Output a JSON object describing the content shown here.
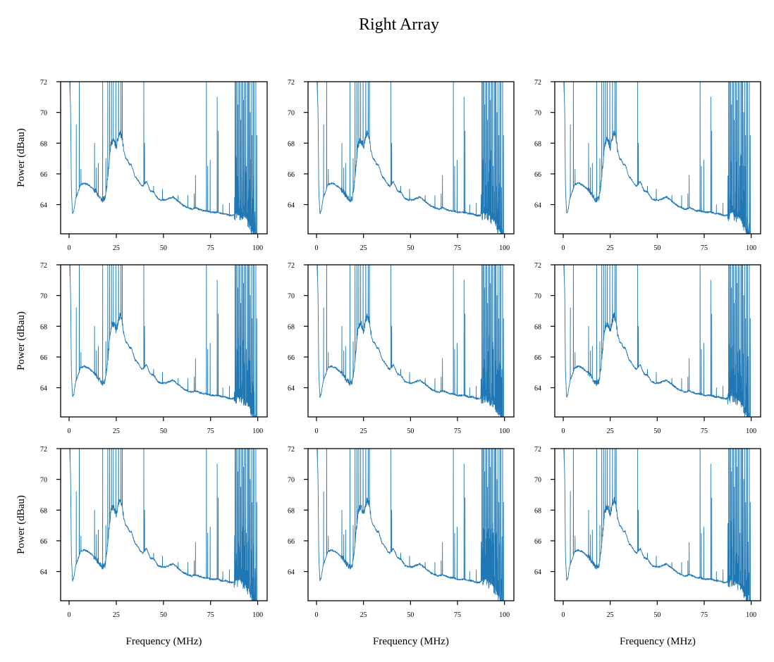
{
  "chart_data": {
    "type": "line",
    "title": "Right Array",
    "layout": {
      "rows": 3,
      "cols": 3
    },
    "xlabel": "Frequency (MHz)",
    "ylabel": "Power (dBau)",
    "xlim": [
      -4.5,
      105
    ],
    "ylim": [
      62.1,
      72
    ],
    "xticks": [
      0,
      25,
      50,
      75,
      100
    ],
    "xtick_labels": [
      "0",
      "25",
      "50",
      "75",
      "100"
    ],
    "yticks": [
      64,
      66,
      68,
      70,
      72
    ],
    "ytick_labels": [
      "64",
      "66",
      "68",
      "70",
      "72"
    ],
    "grid": false,
    "legend": "none",
    "line_color": "#1f77b4",
    "shared_spectrum_shape": {
      "note": "Approximate trace read from axes; all 9 subplots show near-identical spectra",
      "baseline_points": [
        [
          0.3,
          72
        ],
        [
          0.8,
          70.2
        ],
        [
          1.2,
          65.0
        ],
        [
          1.8,
          63.4
        ],
        [
          2.5,
          63.6
        ],
        [
          3.5,
          64.4
        ],
        [
          5,
          64.9
        ],
        [
          6,
          65.3
        ],
        [
          8,
          65.4
        ],
        [
          10,
          65.3
        ],
        [
          12,
          65.1
        ],
        [
          14,
          64.9
        ],
        [
          16,
          64.5
        ],
        [
          17.5,
          64.3
        ],
        [
          19,
          64.4
        ],
        [
          20,
          65.2
        ],
        [
          21,
          66.5
        ],
        [
          22,
          67.8
        ],
        [
          23,
          68.2
        ],
        [
          24,
          68.1
        ],
        [
          25,
          67.7
        ],
        [
          26,
          68.3
        ],
        [
          27,
          68.7
        ],
        [
          28,
          68.4
        ],
        [
          29,
          67.5
        ],
        [
          30,
          67.0
        ],
        [
          31,
          66.9
        ],
        [
          32,
          66.6
        ],
        [
          33,
          66.6
        ],
        [
          34,
          66.2
        ],
        [
          35,
          65.8
        ],
        [
          36,
          65.7
        ],
        [
          37,
          65.5
        ],
        [
          38,
          65.3
        ],
        [
          39,
          65.2
        ],
        [
          41,
          65.5
        ],
        [
          42,
          65.2
        ],
        [
          43,
          64.9
        ],
        [
          45,
          64.8
        ],
        [
          47,
          64.4
        ],
        [
          49,
          64.3
        ],
        [
          51,
          64.3
        ],
        [
          53,
          64.4
        ],
        [
          55,
          64.5
        ],
        [
          57,
          64.3
        ],
        [
          59,
          64.1
        ],
        [
          61,
          63.9
        ],
        [
          63,
          63.8
        ],
        [
          65,
          63.7
        ],
        [
          67,
          63.8
        ],
        [
          69,
          63.7
        ],
        [
          71,
          63.6
        ],
        [
          73,
          63.6
        ],
        [
          75,
          63.5
        ],
        [
          77,
          63.5
        ],
        [
          79,
          63.5
        ],
        [
          81,
          63.4
        ],
        [
          83,
          63.4
        ],
        [
          85,
          63.3
        ],
        [
          87,
          63.3
        ],
        [
          88,
          63.4
        ],
        [
          90,
          63.5
        ],
        [
          92,
          63.3
        ],
        [
          94,
          63.1
        ],
        [
          95,
          62.9
        ],
        [
          96,
          62.7
        ],
        [
          97,
          62.4
        ],
        [
          98,
          62.1
        ],
        [
          98.5,
          62.1
        ]
      ],
      "spikes": [
        [
          0.5,
          72
        ],
        [
          3.8,
          69.2
        ],
        [
          5.4,
          72
        ],
        [
          6.3,
          66.3
        ],
        [
          13.5,
          68.0
        ],
        [
          14.5,
          66.4
        ],
        [
          15.5,
          66.7
        ],
        [
          17.8,
          72
        ],
        [
          19.5,
          67.0
        ],
        [
          20.5,
          72
        ],
        [
          21.5,
          72
        ],
        [
          22.5,
          72
        ],
        [
          23.5,
          72
        ],
        [
          24.8,
          72
        ],
        [
          26.2,
          72
        ],
        [
          27.5,
          72
        ],
        [
          28.2,
          72
        ],
        [
          39.6,
          72
        ],
        [
          40.0,
          68.0
        ],
        [
          44.8,
          65.2
        ],
        [
          49.5,
          65.0
        ],
        [
          57.8,
          64.6
        ],
        [
          63.0,
          64.6
        ],
        [
          66.3,
          64.7
        ],
        [
          67.0,
          65.9
        ],
        [
          72.8,
          72
        ],
        [
          73.5,
          66.5
        ],
        [
          74.8,
          66.9
        ],
        [
          78.5,
          71.0
        ],
        [
          79.0,
          68.8
        ],
        [
          81.5,
          64.0
        ],
        [
          85.0,
          64.1
        ],
        [
          88.0,
          72
        ],
        [
          88.5,
          72
        ],
        [
          89.0,
          72
        ],
        [
          89.5,
          70.5
        ],
        [
          90.0,
          72
        ],
        [
          90.5,
          72
        ],
        [
          91.0,
          69.5
        ],
        [
          91.5,
          72
        ],
        [
          92.0,
          72
        ],
        [
          92.5,
          70.8
        ],
        [
          93.0,
          72
        ],
        [
          93.5,
          72
        ],
        [
          94.0,
          66.5
        ],
        [
          94.5,
          72
        ],
        [
          95.0,
          72
        ],
        [
          95.5,
          72
        ],
        [
          96.0,
          70.0
        ],
        [
          96.5,
          72
        ],
        [
          97.0,
          68.5
        ],
        [
          97.5,
          72
        ],
        [
          98.0,
          72
        ],
        [
          99.0,
          72
        ],
        [
          99.5,
          68.5
        ]
      ]
    },
    "subplots": [
      {
        "row": 0,
        "col": 0,
        "ylabel_shown": true,
        "xlabel_shown": false,
        "seed": 11
      },
      {
        "row": 0,
        "col": 1,
        "ylabel_shown": false,
        "xlabel_shown": false,
        "seed": 12
      },
      {
        "row": 0,
        "col": 2,
        "ylabel_shown": false,
        "xlabel_shown": false,
        "seed": 13
      },
      {
        "row": 1,
        "col": 0,
        "ylabel_shown": true,
        "xlabel_shown": false,
        "seed": 21
      },
      {
        "row": 1,
        "col": 1,
        "ylabel_shown": false,
        "xlabel_shown": false,
        "seed": 22
      },
      {
        "row": 1,
        "col": 2,
        "ylabel_shown": false,
        "xlabel_shown": false,
        "seed": 23
      },
      {
        "row": 2,
        "col": 0,
        "ylabel_shown": true,
        "xlabel_shown": true,
        "seed": 31
      },
      {
        "row": 2,
        "col": 1,
        "ylabel_shown": false,
        "xlabel_shown": true,
        "seed": 32
      },
      {
        "row": 2,
        "col": 2,
        "ylabel_shown": false,
        "xlabel_shown": true,
        "seed": 33
      }
    ]
  }
}
